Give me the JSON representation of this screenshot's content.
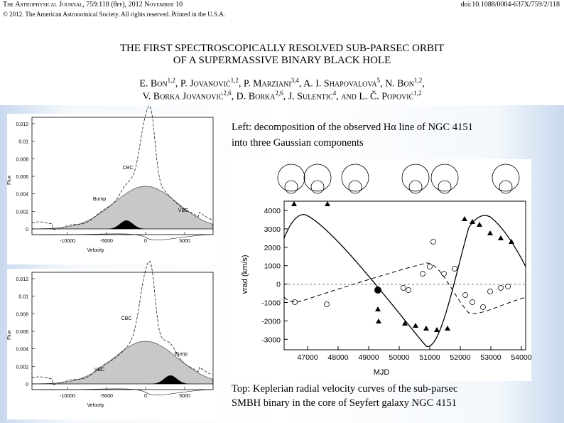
{
  "header": {
    "journal": "The Astrophysical Journal, 759:118 (8pp), 2012 November 10",
    "doi": "doi:10.1088/0004-637X/759/2/118",
    "copyright": "© 2012. The American Astronomical Society. All rights reserved. Printed in the U.S.A.",
    "title_lines": [
      "THE FIRST SPECTROSCOPICALLY RESOLVED SUB-PARSEC ORBIT",
      "OF A SUPERMASSIVE BINARY BLACK HOLE"
    ],
    "author_lines": [
      [
        {
          "text": "E. Bon",
          "sup": "1,2"
        },
        {
          "text": ", P. Jovanović",
          "sup": "1,2"
        },
        {
          "text": ", P. Marziani",
          "sup": "3,4"
        },
        {
          "text": ", A. I. Shapovalova",
          "sup": "5"
        },
        {
          "text": ", N. Bon",
          "sup": "1,2"
        },
        {
          "text": ","
        }
      ],
      [
        {
          "text": "V. Borka Jovanović",
          "sup": "2,6"
        },
        {
          "text": ", D. Borka",
          "sup": "2,6"
        },
        {
          "text": ", J. Sulentic",
          "sup": "4"
        },
        {
          "text": ", and L. Č. Popović",
          "sup": "1,2"
        }
      ]
    ]
  },
  "left_figures": [
    {
      "yticks": [
        "0.012",
        "0.01",
        "0.008",
        "0.006",
        "0.004",
        "0.002",
        "0"
      ],
      "xticks": [
        "-10000",
        "-5000",
        "0",
        "5000"
      ],
      "ylabel": "Flux",
      "xlabel": "Velocity",
      "labels": [
        "CBC",
        "Bump",
        "VBC"
      ]
    },
    {
      "yticks": [
        "0.012",
        "0.01",
        "0.008",
        "0.006",
        "0.004",
        "0.002",
        "0"
      ],
      "xticks": [
        "-10000",
        "-5000",
        "0",
        "5000"
      ],
      "ylabel": "Flux",
      "xlabel": "Velocity",
      "labels": [
        "CBC",
        "VBC",
        "Bump"
      ]
    }
  ],
  "right_figure": {
    "yticks": [
      "4000",
      "3000",
      "2000",
      "1000",
      "0",
      "-1000",
      "-2000",
      "-3000"
    ],
    "xticks": [
      "47000",
      "48000",
      "49000",
      "50000",
      "51000",
      "52000",
      "53000",
      "54000"
    ],
    "ylabel": "vrad (km/s)",
    "xlabel": "MJD"
  },
  "captions": {
    "left": [
      "Left: decomposition of the observed Hα line of NGC 4151",
      "into three Gaussian components"
    ],
    "bottom": [
      "Top: Keplerian radial velocity curves of the sub-parsec",
      "SMBH binary in the core of Seyfert galaxy NGC 4151"
    ]
  }
}
